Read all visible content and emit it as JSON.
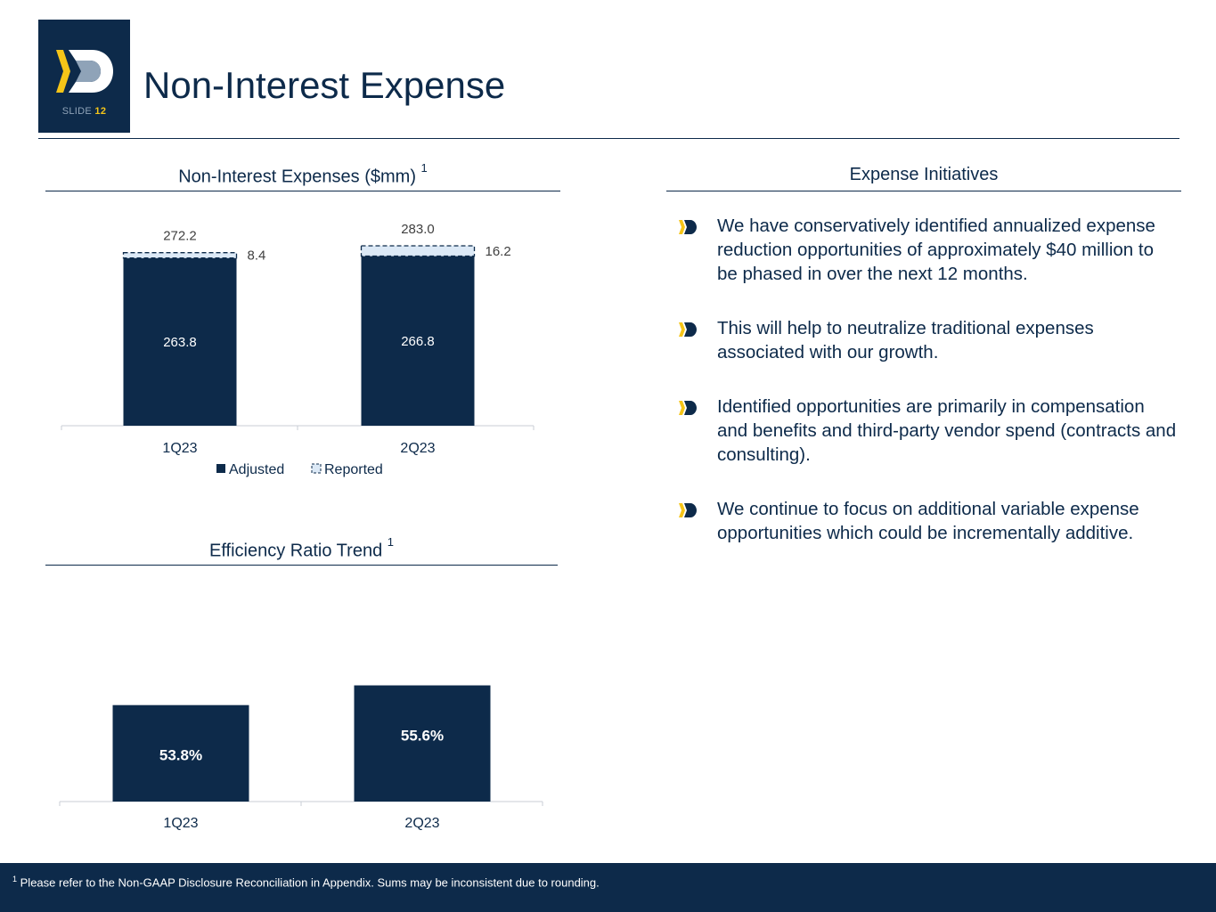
{
  "logo": {
    "slide_label": "SLIDE",
    "slide_number": "12"
  },
  "title": "Non-Interest Expense",
  "colors": {
    "navy": "#0d2a4a",
    "light_blue": "#dce9f6",
    "gold": "#f5c518",
    "grey": "#c8ced6"
  },
  "chart_data": [
    {
      "type": "bar",
      "title": "Non-Interest Expenses ($mm)",
      "title_sup": "1",
      "categories": [
        "1Q23",
        "2Q23"
      ],
      "series": [
        {
          "name": "Adjusted",
          "values": [
            263.8,
            266.8
          ]
        },
        {
          "name": "Reported",
          "values": [
            8.4,
            16.2
          ]
        }
      ],
      "totals": [
        272.2,
        283.0
      ],
      "labels": {
        "adjusted": [
          "263.8",
          "266.8"
        ],
        "reported": [
          "8.4",
          "16.2"
        ],
        "totals": [
          "272.2",
          "283.0"
        ]
      },
      "stacked": true,
      "ylim": [
        0,
        283
      ],
      "legend": [
        "Adjusted",
        "Reported"
      ],
      "legend_position": "bottom"
    },
    {
      "type": "bar",
      "title": "Efficiency Ratio Trend",
      "title_sup": "1",
      "categories": [
        "1Q23",
        "2Q23"
      ],
      "values": [
        53.8,
        55.6
      ],
      "labels": [
        "53.8%",
        "55.6%"
      ],
      "ylim": [
        45,
        58
      ]
    }
  ],
  "initiatives": {
    "title": "Expense Initiatives",
    "bullets": [
      "We have conservatively identified annualized expense reduction opportunities of approximately $40 million to be phased in over the next 12 months.",
      "This will help to neutralize traditional expenses associated with our growth.",
      "Identified opportunities are primarily in compensation and benefits and third-party vendor spend (contracts and consulting).",
      "We continue to focus on additional variable expense opportunities which could be incrementally additive."
    ]
  },
  "footer": {
    "sup": "1",
    "text": "Please refer to the Non-GAAP Disclosure Reconciliation in Appendix. Sums may be inconsistent due to rounding."
  }
}
